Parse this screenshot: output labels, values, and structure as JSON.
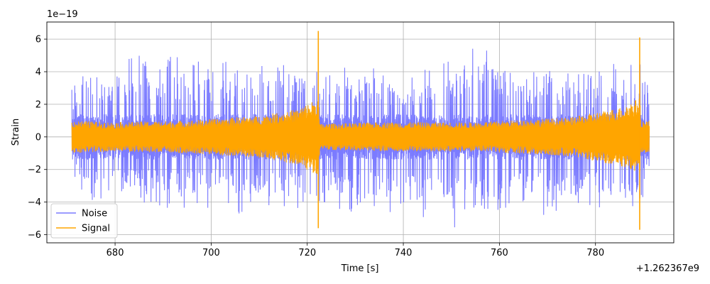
{
  "chart_data": {
    "type": "line",
    "xlabel": "Time [s]",
    "ylabel": "Strain",
    "x_offset_label": "+1.262367e9",
    "y_scale_label": "1e−19",
    "xlim": [
      665.8,
      796.3
    ],
    "ylim": [
      -6.5,
      7.05
    ],
    "xticks": [
      680,
      700,
      720,
      740,
      760,
      780
    ],
    "yticks": [
      -6,
      -4,
      -2,
      0,
      2,
      4,
      6
    ],
    "grid": true,
    "legend_position": "lower-left",
    "x_range": [
      671.0,
      791.2
    ],
    "series": [
      {
        "name": "Noise",
        "color": "#7b7bff",
        "typical_amplitude": 1.4,
        "peak_envelope": [
          {
            "x": 671.0,
            "y": 3.3
          },
          {
            "x": 675.0,
            "y": 5.3
          },
          {
            "x": 678.0,
            "y": 4.4
          },
          {
            "x": 684.0,
            "y": 5.0
          },
          {
            "x": 690.0,
            "y": 5.2
          },
          {
            "x": 698.0,
            "y": 4.8
          },
          {
            "x": 705.0,
            "y": 4.6
          },
          {
            "x": 713.0,
            "y": 4.8
          },
          {
            "x": 720.0,
            "y": 4.2
          },
          {
            "x": 730.0,
            "y": 4.6
          },
          {
            "x": 740.0,
            "y": 4.2
          },
          {
            "x": 748.0,
            "y": 4.6
          },
          {
            "x": 755.3,
            "y": 6.4
          },
          {
            "x": 762.0,
            "y": 4.6
          },
          {
            "x": 770.0,
            "y": 4.2
          },
          {
            "x": 780.0,
            "y": 4.0
          },
          {
            "x": 787.0,
            "y": 5.1
          },
          {
            "x": 791.0,
            "y": 4.0
          }
        ],
        "trough_envelope": [
          {
            "x": 671.0,
            "y": -3.4
          },
          {
            "x": 678.0,
            "y": -4.4
          },
          {
            "x": 684.0,
            "y": -4.4
          },
          {
            "x": 697.0,
            "y": -4.6
          },
          {
            "x": 701.0,
            "y": -4.3
          },
          {
            "x": 705.0,
            "y": -4.9
          },
          {
            "x": 711.0,
            "y": -5.0
          },
          {
            "x": 717.0,
            "y": -4.6
          },
          {
            "x": 730.0,
            "y": -4.6
          },
          {
            "x": 737.0,
            "y": -5.0
          },
          {
            "x": 748.0,
            "y": -5.4
          },
          {
            "x": 755.0,
            "y": -5.9
          },
          {
            "x": 762.0,
            "y": -4.8
          },
          {
            "x": 770.0,
            "y": -4.8
          },
          {
            "x": 777.0,
            "y": -4.8
          },
          {
            "x": 788.0,
            "y": -4.8
          },
          {
            "x": 791.0,
            "y": -3.0
          }
        ]
      },
      {
        "name": "Signal",
        "color": "#ffa500",
        "typical_amplitude": 1.0,
        "envelope": [
          {
            "x": 671.0,
            "y": 1.0
          },
          {
            "x": 680.0,
            "y": 0.9
          },
          {
            "x": 695.0,
            "y": 1.0
          },
          {
            "x": 710.0,
            "y": 1.3
          },
          {
            "x": 718.0,
            "y": 1.7
          },
          {
            "x": 722.3,
            "y": 2.4
          },
          {
            "x": 722.6,
            "y": 0.8
          },
          {
            "x": 735.0,
            "y": 0.9
          },
          {
            "x": 755.0,
            "y": 0.9
          },
          {
            "x": 775.0,
            "y": 1.2
          },
          {
            "x": 785.0,
            "y": 1.8
          },
          {
            "x": 789.2,
            "y": 2.4
          },
          {
            "x": 789.5,
            "y": 1.0
          },
          {
            "x": 791.2,
            "y": 1.0
          }
        ],
        "spikes": [
          {
            "x": 722.3,
            "y_max": 6.5,
            "y_min": -5.6
          },
          {
            "x": 789.2,
            "y_max": 6.1,
            "y_min": -5.7
          }
        ]
      }
    ]
  }
}
